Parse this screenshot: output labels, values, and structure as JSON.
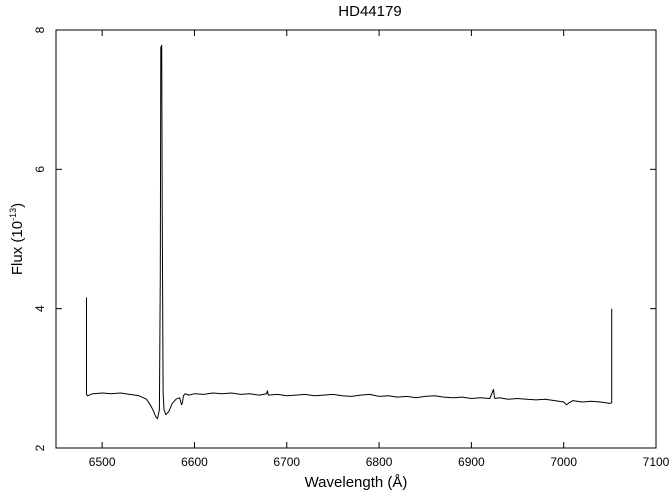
{
  "chart_data": {
    "type": "line",
    "title": "HD44179",
    "xlabel": "Wavelength (Å)",
    "ylabel_prefix": "Flux (10",
    "ylabel_exponent": "-13",
    "ylabel_suffix": ")",
    "xlim": [
      6450,
      7100
    ],
    "ylim": [
      2,
      8
    ],
    "xticks": [
      6500,
      6600,
      6700,
      6800,
      6900,
      7000,
      7100
    ],
    "yticks": [
      2,
      4,
      6,
      8
    ],
    "grid": false,
    "series": [
      {
        "x": [
          6483,
          6483,
          6484,
          6490,
          6500,
          6510,
          6520,
          6530,
          6540,
          6548,
          6552,
          6555,
          6558,
          6560,
          6562,
          6563,
          6563.5,
          6564.5,
          6565,
          6566,
          6567,
          6569,
          6572,
          6576,
          6580,
          6584,
          6586,
          6587,
          6588,
          6590,
          6594,
          6600,
          6610,
          6620,
          6630,
          6640,
          6650,
          6660,
          6670,
          6678,
          6679,
          6680,
          6690,
          6700,
          6710,
          6720,
          6730,
          6740,
          6750,
          6760,
          6770,
          6780,
          6790,
          6800,
          6810,
          6820,
          6830,
          6840,
          6850,
          6860,
          6870,
          6880,
          6890,
          6900,
          6910,
          6920,
          6924,
          6925,
          6926,
          6930,
          6940,
          6950,
          6960,
          6970,
          6980,
          6990,
          7000,
          7003,
          7006,
          7010,
          7020,
          7030,
          7040,
          7050,
          7052,
          7052
        ],
        "y": [
          4.16,
          2.77,
          2.75,
          2.78,
          2.79,
          2.78,
          2.79,
          2.77,
          2.75,
          2.7,
          2.62,
          2.55,
          2.45,
          2.42,
          2.55,
          4.5,
          7.75,
          7.78,
          5.5,
          2.8,
          2.55,
          2.48,
          2.52,
          2.64,
          2.7,
          2.72,
          2.62,
          2.65,
          2.75,
          2.78,
          2.76,
          2.78,
          2.77,
          2.79,
          2.78,
          2.79,
          2.77,
          2.78,
          2.76,
          2.78,
          2.82,
          2.76,
          2.77,
          2.75,
          2.76,
          2.77,
          2.75,
          2.76,
          2.77,
          2.75,
          2.74,
          2.76,
          2.77,
          2.74,
          2.75,
          2.73,
          2.74,
          2.72,
          2.74,
          2.75,
          2.73,
          2.72,
          2.73,
          2.71,
          2.72,
          2.71,
          2.84,
          2.72,
          2.71,
          2.72,
          2.7,
          2.71,
          2.7,
          2.69,
          2.7,
          2.68,
          2.66,
          2.62,
          2.65,
          2.68,
          2.66,
          2.67,
          2.66,
          2.64,
          2.65,
          4.0
        ]
      }
    ]
  }
}
